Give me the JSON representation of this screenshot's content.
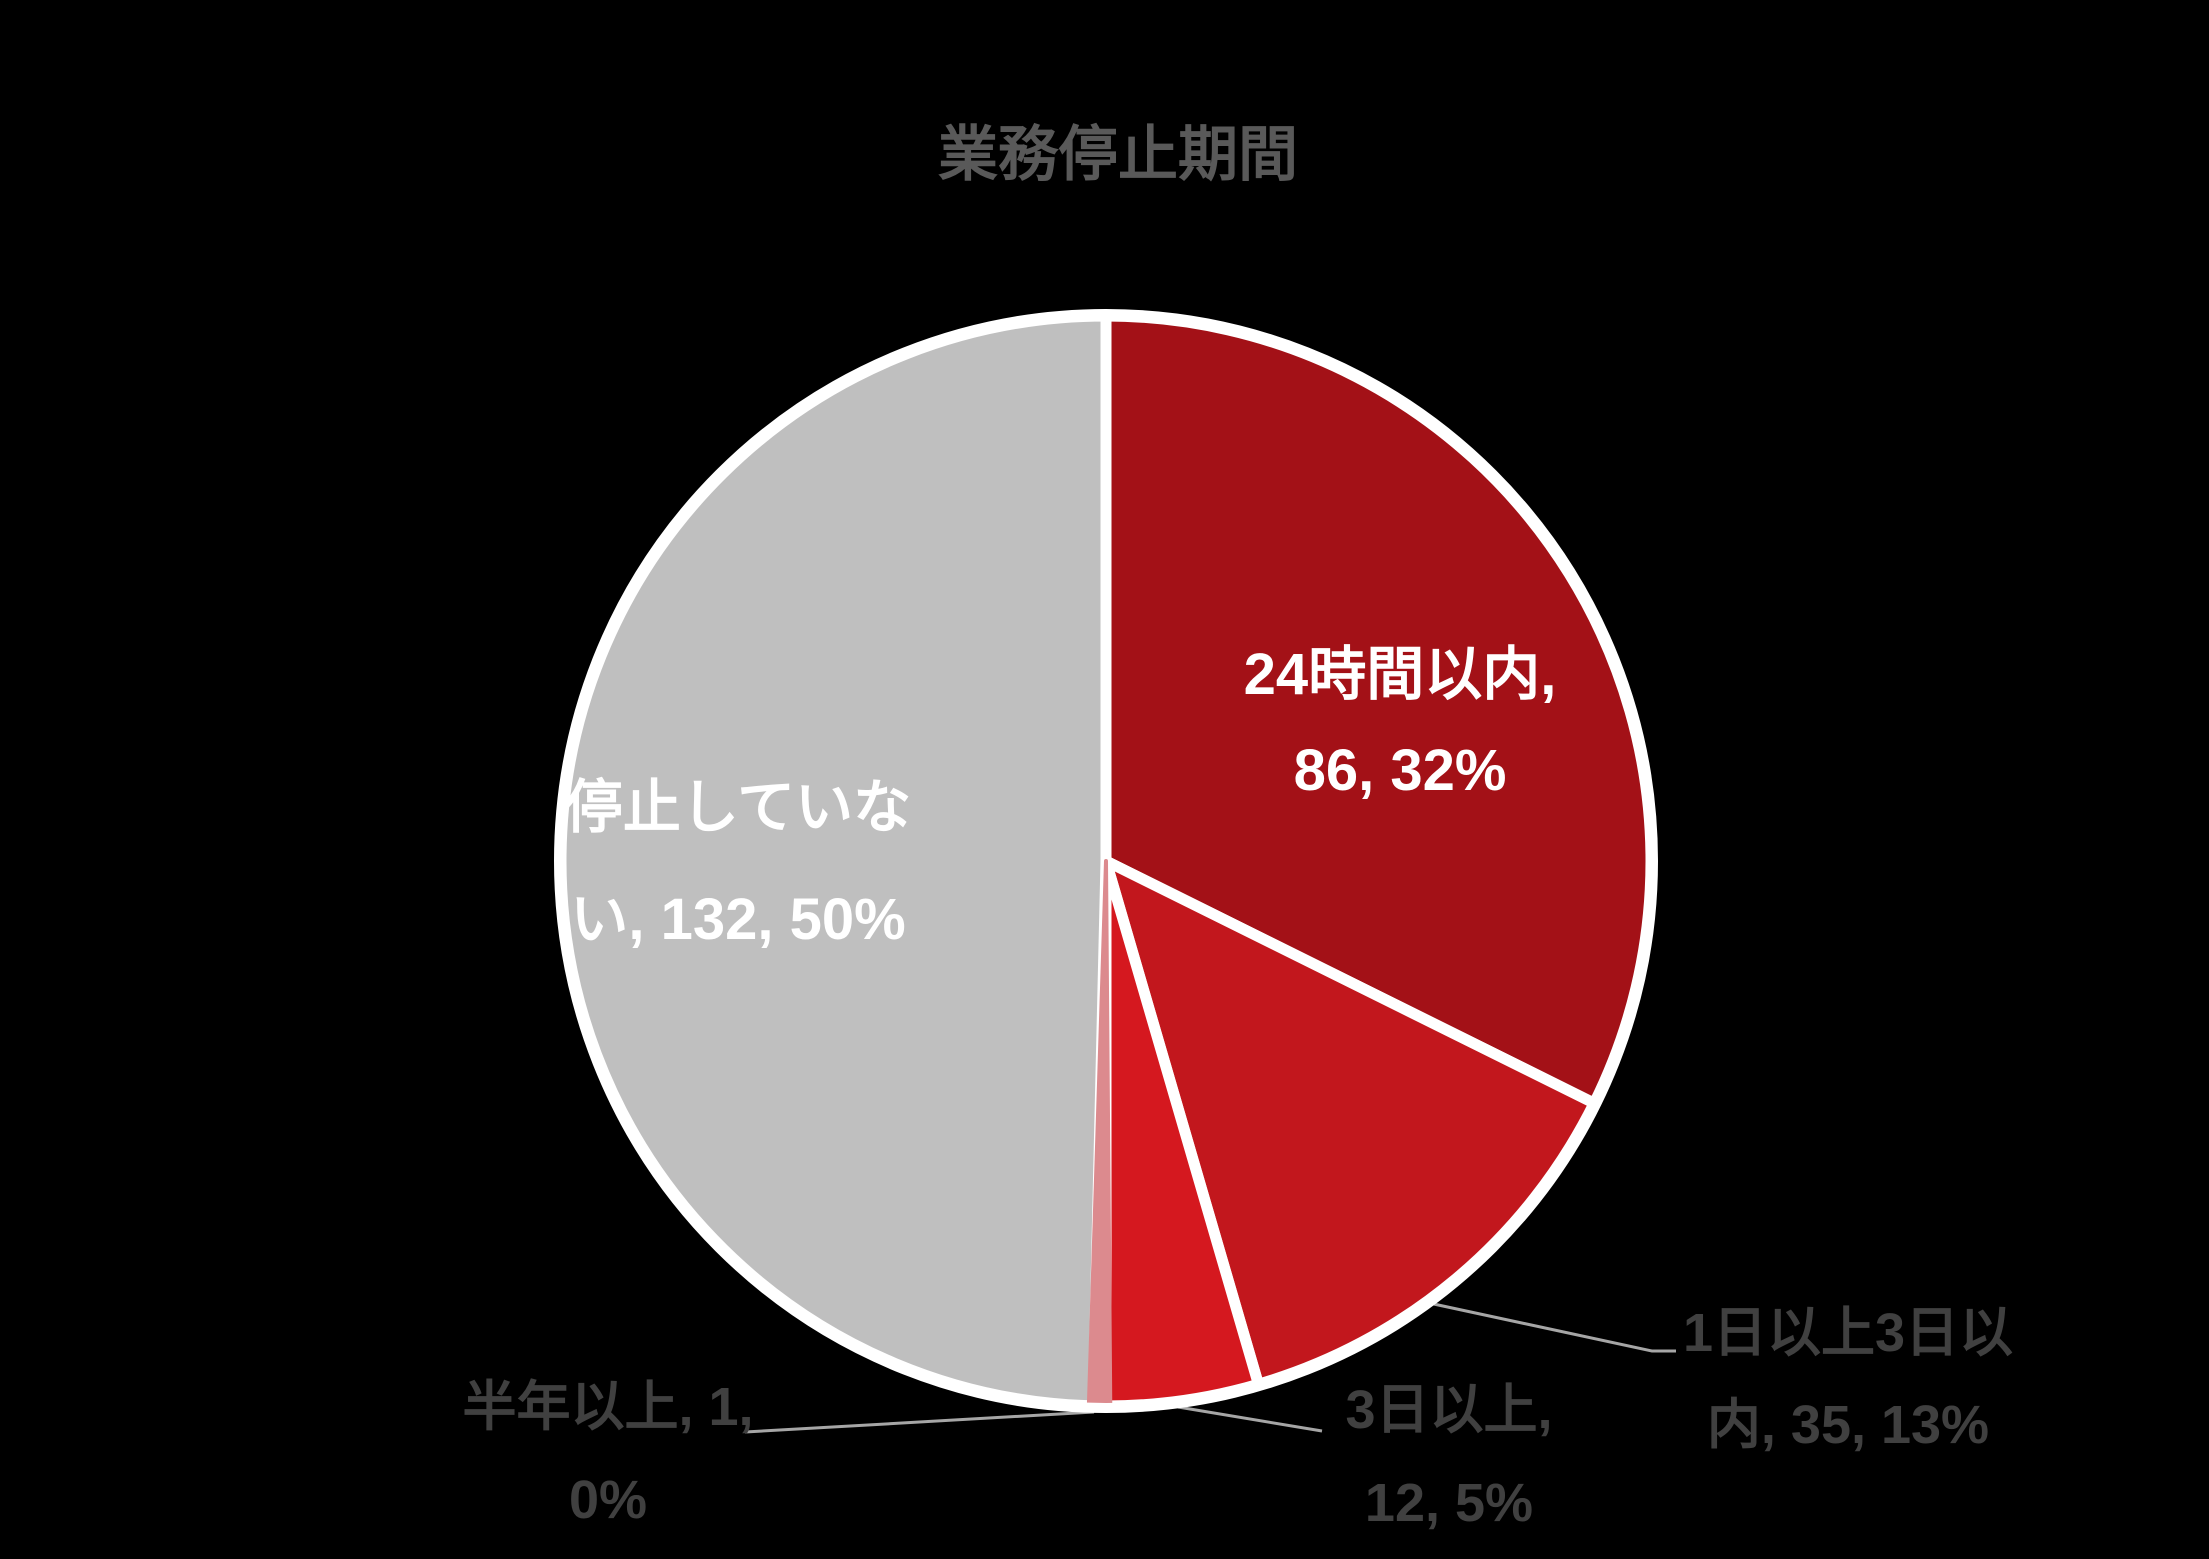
{
  "title": "業務停止期間",
  "colors": {
    "background": "#000000",
    "title_text": "#595959",
    "inside_label_text": "#FFFFFF",
    "outside_label_text": "#404040",
    "slice_border": "#FFFFFF",
    "leader_line": "#A6A6A6"
  },
  "chart_data": {
    "type": "pie",
    "title": "業務停止期間",
    "categories": [
      "24時間以内",
      "1日以上3日以内",
      "3日以上",
      "半年以上",
      "停止していない"
    ],
    "values": [
      86,
      35,
      12,
      1,
      132
    ],
    "percent_labels": [
      "32%",
      "13%",
      "5%",
      "0%",
      "50%"
    ],
    "colors": [
      "#A31117",
      "#C2171D",
      "#D5181F",
      "#DC8A8E",
      "#BFBFBF"
    ],
    "start_angle_deg": 0,
    "direction": "clockwise",
    "legend": "none",
    "label_format": "category, value, percent"
  },
  "labels": {
    "inside": [
      {
        "name": "24時間以内",
        "line1": "24時間以内,",
        "line2": "86, 32%"
      },
      {
        "name": "停止していない",
        "line1": "停止していな",
        "line2": "い, 132, 50%"
      }
    ],
    "outside": [
      {
        "name": "半年以上",
        "line1": "半年以上, 1,",
        "line2": "0%"
      },
      {
        "name": "3日以上",
        "line1": "3日以上,",
        "line2": "12, 5%"
      },
      {
        "name": "1日以上3日以内",
        "line1": "1日以上3日以",
        "line2": "内, 35, 13%"
      }
    ]
  }
}
